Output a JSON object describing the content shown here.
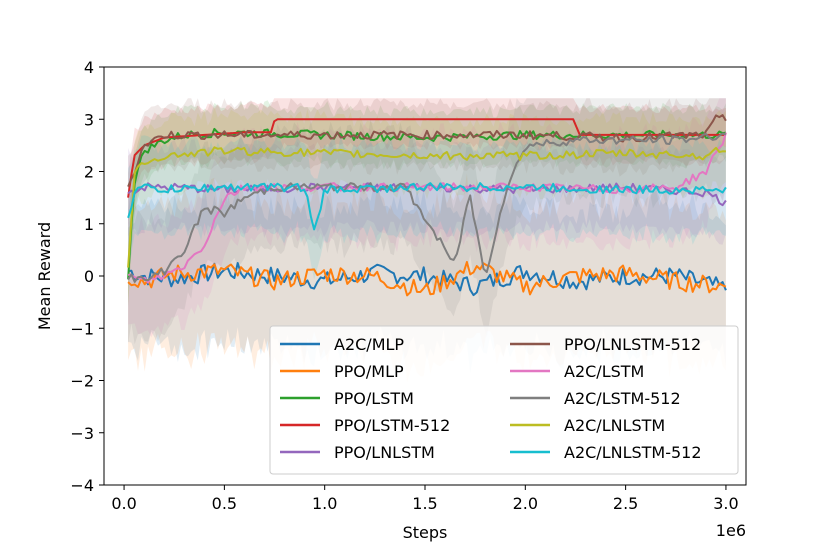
{
  "chart_data": {
    "type": "line",
    "title": "",
    "xlabel": "Steps",
    "ylabel": "Mean Reward",
    "x_offset_label": "1e6",
    "xlim": [
      -0.1,
      3.1
    ],
    "ylim": [
      -4,
      4
    ],
    "x_ticks": [
      0.0,
      0.5,
      1.0,
      1.5,
      2.0,
      2.5,
      3.0
    ],
    "x_tick_labels": [
      "0.0",
      "0.5",
      "1.0",
      "1.5",
      "2.0",
      "2.5",
      "3.0"
    ],
    "y_ticks": [
      -4,
      -3,
      -2,
      -1,
      0,
      1,
      2,
      3,
      4
    ],
    "y_tick_labels": [
      "−4",
      "−3",
      "−2",
      "−1",
      "0",
      "1",
      "2",
      "3",
      "4"
    ],
    "grid": false,
    "legend_position": "lower-right",
    "legend_columns": 2,
    "series": [
      {
        "name": "A2C/MLP",
        "color": "#1f77b4",
        "x": [
          0.02,
          0.1,
          0.25,
          0.5,
          0.75,
          1.0,
          1.25,
          1.5,
          1.75,
          2.0,
          2.25,
          2.5,
          2.75,
          3.0
        ],
        "y": [
          0.1,
          0.0,
          -0.05,
          0.1,
          0.0,
          -0.1,
          0.05,
          0.0,
          -0.2,
          0.1,
          -0.1,
          0.0,
          0.0,
          -0.25
        ],
        "band": 1.6
      },
      {
        "name": "PPO/MLP",
        "color": "#ff7f0e",
        "x": [
          0.02,
          0.1,
          0.25,
          0.5,
          0.75,
          1.0,
          1.25,
          1.5,
          1.75,
          2.0,
          2.25,
          2.5,
          2.75,
          3.0
        ],
        "y": [
          0.0,
          -0.1,
          0.05,
          0.1,
          -0.1,
          0.05,
          0.0,
          -0.3,
          0.2,
          -0.2,
          0.0,
          0.05,
          -0.1,
          -0.2
        ],
        "band": 1.7
      },
      {
        "name": "PPO/LSTM",
        "color": "#2ca02c",
        "x": [
          0.02,
          0.05,
          0.1,
          0.2,
          0.3,
          0.5,
          1.0,
          1.5,
          2.0,
          2.5,
          3.0
        ],
        "y": [
          0.0,
          1.8,
          2.4,
          2.6,
          2.7,
          2.75,
          2.7,
          2.65,
          2.7,
          2.7,
          2.7
        ],
        "band": 0.6
      },
      {
        "name": "PPO/LSTM-512",
        "color": "#d62728",
        "x": [
          0.02,
          0.05,
          0.1,
          0.2,
          0.4,
          0.6,
          0.74,
          0.75,
          2.25,
          2.26,
          3.0
        ],
        "y": [
          1.5,
          2.3,
          2.5,
          2.65,
          2.7,
          2.75,
          2.75,
          3.0,
          3.0,
          2.7,
          2.7
        ],
        "band": 0.6
      },
      {
        "name": "PPO/LNLSTM",
        "color": "#9467bd",
        "x": [
          0.02,
          0.1,
          0.25,
          0.5,
          1.0,
          1.5,
          2.0,
          2.5,
          2.9,
          3.0
        ],
        "y": [
          1.6,
          1.7,
          1.7,
          1.65,
          1.7,
          1.7,
          1.65,
          1.7,
          1.6,
          1.4
        ],
        "band": 0.9
      },
      {
        "name": "PPO/LNLSTM-512",
        "color": "#8c564b",
        "x": [
          0.02,
          0.05,
          0.1,
          0.2,
          0.3,
          0.5,
          1.0,
          1.5,
          2.0,
          2.5,
          2.9,
          2.95,
          3.0
        ],
        "y": [
          1.7,
          2.0,
          2.5,
          2.7,
          2.7,
          2.7,
          2.7,
          2.7,
          2.7,
          2.65,
          2.7,
          3.0,
          3.0
        ],
        "band": 0.7
      },
      {
        "name": "A2C/LSTM",
        "color": "#e377c2",
        "x": [
          0.02,
          0.1,
          0.2,
          0.3,
          0.4,
          0.5,
          0.6,
          1.0,
          1.5,
          2.0,
          2.5,
          2.75,
          2.9,
          3.0
        ],
        "y": [
          0.0,
          -0.1,
          0.0,
          0.2,
          0.6,
          1.5,
          1.7,
          1.7,
          1.7,
          1.7,
          1.65,
          1.7,
          2.0,
          2.7
        ],
        "band": 1.2
      },
      {
        "name": "A2C/LSTM-512",
        "color": "#7f7f7f",
        "x": [
          0.02,
          0.1,
          0.2,
          0.3,
          0.4,
          0.5,
          0.6,
          0.75,
          1.0,
          1.4,
          1.65,
          1.72,
          1.8,
          1.9,
          2.0,
          2.25,
          2.5,
          2.75,
          3.0
        ],
        "y": [
          0.0,
          -0.1,
          0.1,
          0.5,
          1.3,
          1.2,
          1.5,
          1.7,
          1.7,
          1.7,
          0.2,
          1.6,
          0.0,
          1.6,
          2.5,
          2.6,
          2.6,
          2.6,
          2.7
        ],
        "band": 1.3
      },
      {
        "name": "A2C/LNLSTM",
        "color": "#bcbd22",
        "x": [
          0.02,
          0.05,
          0.1,
          0.2,
          0.5,
          1.0,
          1.5,
          2.0,
          2.5,
          2.9,
          3.0
        ],
        "y": [
          0.2,
          1.9,
          2.2,
          2.3,
          2.4,
          2.35,
          2.3,
          2.3,
          2.35,
          2.3,
          2.45
        ],
        "band": 0.8
      },
      {
        "name": "A2C/LNLSTM-512",
        "color": "#17becf",
        "x": [
          0.02,
          0.05,
          0.1,
          0.2,
          0.5,
          0.9,
          0.95,
          1.0,
          1.5,
          2.0,
          2.5,
          3.0
        ],
        "y": [
          1.1,
          1.6,
          1.7,
          1.65,
          1.7,
          1.7,
          0.8,
          1.65,
          1.7,
          1.7,
          1.65,
          1.65
        ],
        "band": 1.0
      }
    ]
  }
}
